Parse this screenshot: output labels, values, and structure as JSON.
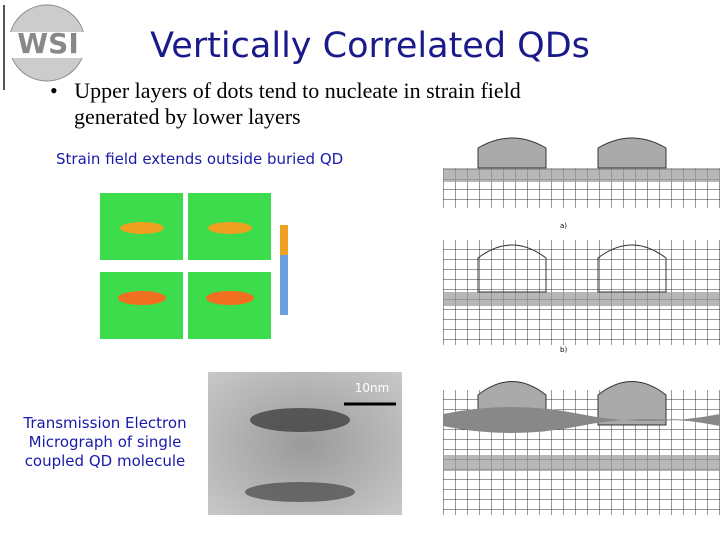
{
  "header": {
    "logo": "WSI",
    "title": "Vertically Correlated QDs"
  },
  "bullets": [
    "Upper layers of dots tend to nucleate in strain field generated by lower layers"
  ],
  "figures": {
    "strain": {
      "caption": "Strain field extends outside buried QD"
    },
    "tem": {
      "caption": "Transmission Electron Micrograph of single coupled QD molecule",
      "scale_bar": "10nm"
    },
    "diagram": {
      "panel_labels": [
        "a)",
        "b)"
      ]
    }
  }
}
